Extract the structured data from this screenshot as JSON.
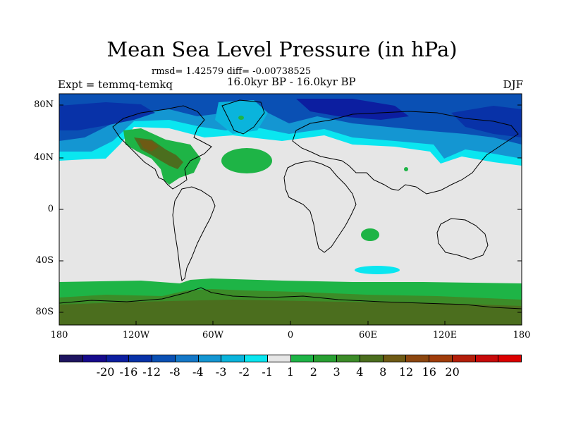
{
  "title": "Mean Sea Level Pressure (in hPa)",
  "stats": "rmsd= 1.42579 diff= -0.00738525",
  "period": "16.0kyr BP - 16.0kyr BP",
  "experiment": "Expt = temmq-temkq",
  "season": "DJF",
  "lat_labels": [
    "80N",
    "40N",
    "0",
    "40S",
    "80S"
  ],
  "lon_labels": [
    "180",
    "120W",
    "60W",
    "0",
    "60E",
    "120E",
    "180"
  ],
  "colors": {
    "neutral": "#e6e6e6",
    "coast": "#000000"
  },
  "legend": {
    "colors": [
      "#1e1460",
      "#160a8c",
      "#0c1ea0",
      "#0832a8",
      "#0a50b4",
      "#1478c8",
      "#1496d2",
      "#0ab4dc",
      "#0ae6f0",
      "#e6e6e6",
      "#1eb446",
      "#28a032",
      "#3c8c28",
      "#4b6e1e",
      "#6e5a14",
      "#8c460f",
      "#a03c0a",
      "#b41e0a",
      "#c80a0a",
      "#dc0000"
    ],
    "labels": [
      "-20",
      "-16",
      "-12",
      "-8",
      "-4",
      "-3",
      "-2",
      "-1",
      "1",
      "2",
      "3",
      "4",
      "8",
      "12",
      "16",
      "20"
    ]
  },
  "map_data": {
    "lon_range": [
      -180,
      180
    ],
    "lat_range": [
      -90,
      90
    ],
    "fields": [
      {
        "region": "arctic-ocean",
        "value": -8
      },
      {
        "region": "north-pacific",
        "value": -4
      },
      {
        "region": "north-atlantic-band",
        "value": -2
      },
      {
        "region": "north-america-high",
        "value": 3
      },
      {
        "region": "north-atlantic-high",
        "value": 2
      },
      {
        "region": "south-indian-ocean",
        "value": 2
      },
      {
        "region": "southern-indian-low",
        "value": -1
      },
      {
        "region": "southern-ocean",
        "value": 2
      },
      {
        "region": "antarctica",
        "value": 4
      }
    ]
  }
}
